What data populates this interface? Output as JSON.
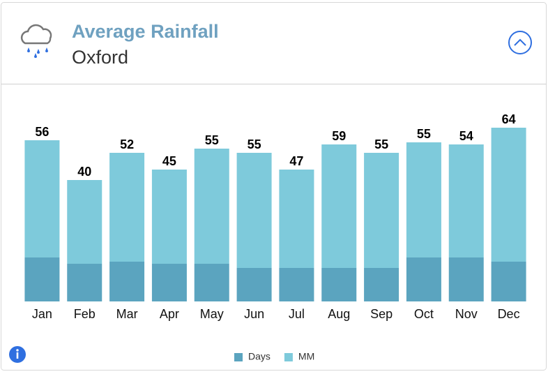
{
  "chart_data": {
    "type": "bar",
    "stacked": true,
    "title": "Average Rainfall",
    "subtitle": "Oxford",
    "categories": [
      "Jan",
      "Feb",
      "Mar",
      "Apr",
      "May",
      "Jun",
      "Jul",
      "Aug",
      "Sep",
      "Oct",
      "Nov",
      "Dec"
    ],
    "series": [
      {
        "name": "Days",
        "color": "#5ba4bf",
        "values": [
          21,
          18,
          19,
          18,
          18,
          16,
          16,
          16,
          16,
          21,
          21,
          19
        ]
      },
      {
        "name": "MM",
        "color": "#7ecadb",
        "values": [
          56,
          40,
          52,
          45,
          55,
          55,
          47,
          59,
          55,
          55,
          54,
          64
        ]
      }
    ],
    "ylim": [
      0,
      90
    ],
    "grid": false,
    "legend": "bottom"
  }
}
